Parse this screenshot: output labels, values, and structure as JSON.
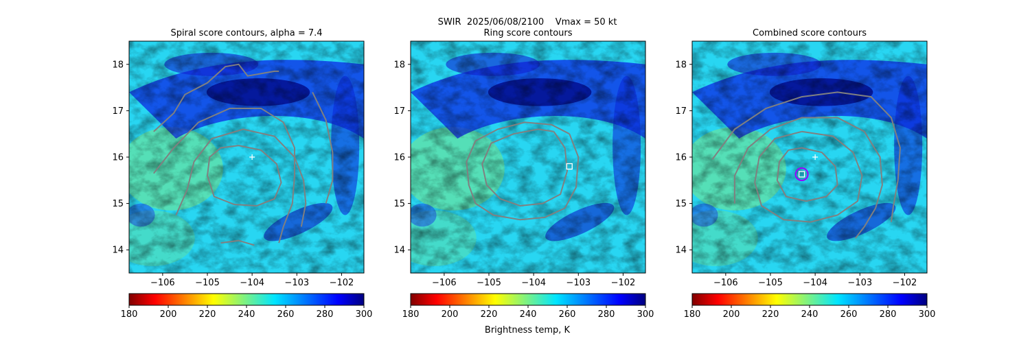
{
  "figure": {
    "suptitle": "SWIR  2025/06/08/2100    Vmax = 50 kt",
    "colorbar_label": "Brightness temp, K"
  },
  "chart_data": [
    {
      "type": "heatmap",
      "title": "Spiral score contours, alpha =  7.4",
      "xlabel": "",
      "ylabel": "",
      "xlim": [
        -106.75,
        -101.5
      ],
      "ylim": [
        13.5,
        18.5
      ],
      "xticks": [
        -106,
        -105,
        -104,
        -103,
        -102
      ],
      "yticks": [
        14,
        15,
        16,
        17,
        18
      ],
      "colormap": "jet_r",
      "colorbar": {
        "range": [
          180,
          300
        ],
        "ticks": [
          180,
          200,
          220,
          240,
          260,
          280,
          300
        ]
      },
      "markers": [
        {
          "kind": "plus",
          "lon": -104.0,
          "lat": 16.0,
          "color": "#ffffff"
        }
      ],
      "contour_color": "#808080",
      "contours": [
        [
          [
            -104.3,
            16.25
          ],
          [
            -103.8,
            16.15
          ],
          [
            -103.45,
            15.85
          ],
          [
            -103.35,
            15.45
          ],
          [
            -103.5,
            15.1
          ],
          [
            -103.9,
            14.95
          ],
          [
            -104.4,
            14.98
          ],
          [
            -104.85,
            15.15
          ],
          [
            -105.0,
            15.6
          ],
          [
            -104.95,
            16.0
          ],
          [
            -104.7,
            16.2
          ],
          [
            -104.3,
            16.25
          ]
        ],
        [
          [
            -105.7,
            14.75
          ],
          [
            -105.45,
            15.3
          ],
          [
            -105.3,
            15.9
          ],
          [
            -104.9,
            16.4
          ],
          [
            -104.2,
            16.6
          ],
          [
            -103.5,
            16.45
          ],
          [
            -103.05,
            16.0
          ],
          [
            -102.85,
            15.5
          ],
          [
            -102.8,
            15.0
          ],
          [
            -102.9,
            14.5
          ]
        ],
        [
          [
            -106.2,
            15.65
          ],
          [
            -105.75,
            16.2
          ],
          [
            -105.2,
            16.75
          ],
          [
            -104.5,
            17.05
          ],
          [
            -103.8,
            17.05
          ],
          [
            -103.3,
            16.75
          ],
          [
            -103.05,
            16.2
          ],
          [
            -103.05,
            15.6
          ],
          [
            -103.1,
            15.0
          ],
          [
            -103.3,
            14.5
          ],
          [
            -103.4,
            14.15
          ]
        ],
        [
          [
            -106.2,
            16.55
          ],
          [
            -105.75,
            16.95
          ],
          [
            -105.5,
            17.35
          ],
          [
            -105.0,
            17.6
          ],
          [
            -104.6,
            17.95
          ],
          [
            -104.3,
            18.0
          ],
          [
            -104.1,
            17.75
          ],
          [
            -103.5,
            17.85
          ],
          [
            -103.4,
            17.85
          ]
        ],
        [
          [
            -102.65,
            17.4
          ],
          [
            -102.35,
            16.8
          ],
          [
            -102.2,
            16.1
          ],
          [
            -102.2,
            15.5
          ],
          [
            -102.35,
            15.0
          ]
        ],
        [
          [
            -104.7,
            14.15
          ],
          [
            -104.3,
            14.2
          ],
          [
            -103.95,
            14.1
          ]
        ]
      ]
    },
    {
      "type": "heatmap",
      "title": "Ring score contours",
      "xlabel": "",
      "ylabel": "",
      "xlim": [
        -106.75,
        -101.5
      ],
      "ylim": [
        13.5,
        18.5
      ],
      "xticks": [
        -106,
        -105,
        -104,
        -103,
        -102
      ],
      "yticks": [
        14,
        15,
        16,
        17,
        18
      ],
      "colormap": "jet_r",
      "colorbar": {
        "range": [
          180,
          300
        ],
        "ticks": [
          180,
          200,
          220,
          240,
          260,
          280,
          300
        ]
      },
      "markers": [
        {
          "kind": "square",
          "lon": -103.2,
          "lat": 15.8,
          "color": "#ffffff"
        }
      ],
      "contour_color": "#808080",
      "contours": [
        [
          [
            -103.2,
            16.5
          ],
          [
            -103.0,
            16.0
          ],
          [
            -103.05,
            15.35
          ],
          [
            -103.3,
            14.9
          ],
          [
            -103.75,
            14.7
          ],
          [
            -104.3,
            14.65
          ],
          [
            -104.9,
            14.75
          ],
          [
            -105.3,
            15.0
          ],
          [
            -105.45,
            15.4
          ],
          [
            -105.5,
            15.9
          ],
          [
            -105.3,
            16.35
          ],
          [
            -104.8,
            16.6
          ],
          [
            -104.2,
            16.75
          ],
          [
            -103.6,
            16.7
          ],
          [
            -103.2,
            16.5
          ]
        ],
        [
          [
            -103.55,
            16.55
          ],
          [
            -103.3,
            16.2
          ],
          [
            -103.25,
            15.7
          ],
          [
            -103.4,
            15.2
          ],
          [
            -103.8,
            15.0
          ],
          [
            -104.3,
            14.95
          ],
          [
            -104.75,
            15.1
          ],
          [
            -105.05,
            15.4
          ],
          [
            -105.15,
            15.85
          ],
          [
            -104.95,
            16.3
          ],
          [
            -104.45,
            16.5
          ],
          [
            -103.9,
            16.6
          ],
          [
            -103.55,
            16.55
          ]
        ]
      ]
    },
    {
      "type": "heatmap",
      "title": "Combined score contours",
      "xlabel": "",
      "ylabel": "",
      "xlim": [
        -106.75,
        -101.5
      ],
      "ylim": [
        13.5,
        18.5
      ],
      "xticks": [
        -106,
        -105,
        -104,
        -103,
        -102
      ],
      "yticks": [
        14,
        15,
        16,
        17,
        18
      ],
      "colormap": "jet_r",
      "colorbar": {
        "range": [
          180,
          300
        ],
        "ticks": [
          180,
          200,
          220,
          240,
          260,
          280,
          300
        ]
      },
      "markers": [
        {
          "kind": "plus",
          "lon": -104.0,
          "lat": 16.0,
          "color": "#ffffff"
        },
        {
          "kind": "square",
          "lon": -104.3,
          "lat": 15.63,
          "color": "#ffffff"
        },
        {
          "kind": "circle",
          "lon": -104.3,
          "lat": 15.63,
          "color": "#9900ff"
        }
      ],
      "contour_color": "#808080",
      "contours": [
        [
          [
            -104.3,
            16.2
          ],
          [
            -103.85,
            16.1
          ],
          [
            -103.55,
            15.8
          ],
          [
            -103.5,
            15.4
          ],
          [
            -103.75,
            15.15
          ],
          [
            -104.2,
            15.05
          ],
          [
            -104.65,
            15.15
          ],
          [
            -104.85,
            15.5
          ],
          [
            -104.8,
            15.9
          ],
          [
            -104.6,
            16.15
          ],
          [
            -104.3,
            16.2
          ]
        ],
        [
          [
            -104.3,
            16.55
          ],
          [
            -103.6,
            16.45
          ],
          [
            -103.15,
            16.1
          ],
          [
            -102.95,
            15.6
          ],
          [
            -103.05,
            15.05
          ],
          [
            -103.5,
            14.75
          ],
          [
            -104.1,
            14.6
          ],
          [
            -104.7,
            14.65
          ],
          [
            -105.2,
            14.95
          ],
          [
            -105.35,
            15.45
          ],
          [
            -105.25,
            16.0
          ],
          [
            -104.9,
            16.4
          ],
          [
            -104.3,
            16.55
          ]
        ],
        [
          [
            -105.8,
            15.0
          ],
          [
            -105.8,
            15.6
          ],
          [
            -105.5,
            16.2
          ],
          [
            -105.0,
            16.6
          ],
          [
            -104.3,
            16.85
          ],
          [
            -103.5,
            16.85
          ],
          [
            -102.9,
            16.55
          ],
          [
            -102.55,
            16.0
          ],
          [
            -102.5,
            15.4
          ],
          [
            -102.65,
            14.9
          ],
          [
            -102.9,
            14.5
          ],
          [
            -103.1,
            14.25
          ]
        ],
        [
          [
            -106.3,
            15.95
          ],
          [
            -105.8,
            16.6
          ],
          [
            -105.1,
            17.05
          ],
          [
            -104.3,
            17.3
          ],
          [
            -103.5,
            17.4
          ],
          [
            -102.75,
            17.3
          ],
          [
            -102.3,
            16.85
          ],
          [
            -102.1,
            16.2
          ],
          [
            -102.15,
            15.5
          ],
          [
            -102.25,
            14.95
          ],
          [
            -102.3,
            14.6
          ]
        ]
      ]
    }
  ]
}
